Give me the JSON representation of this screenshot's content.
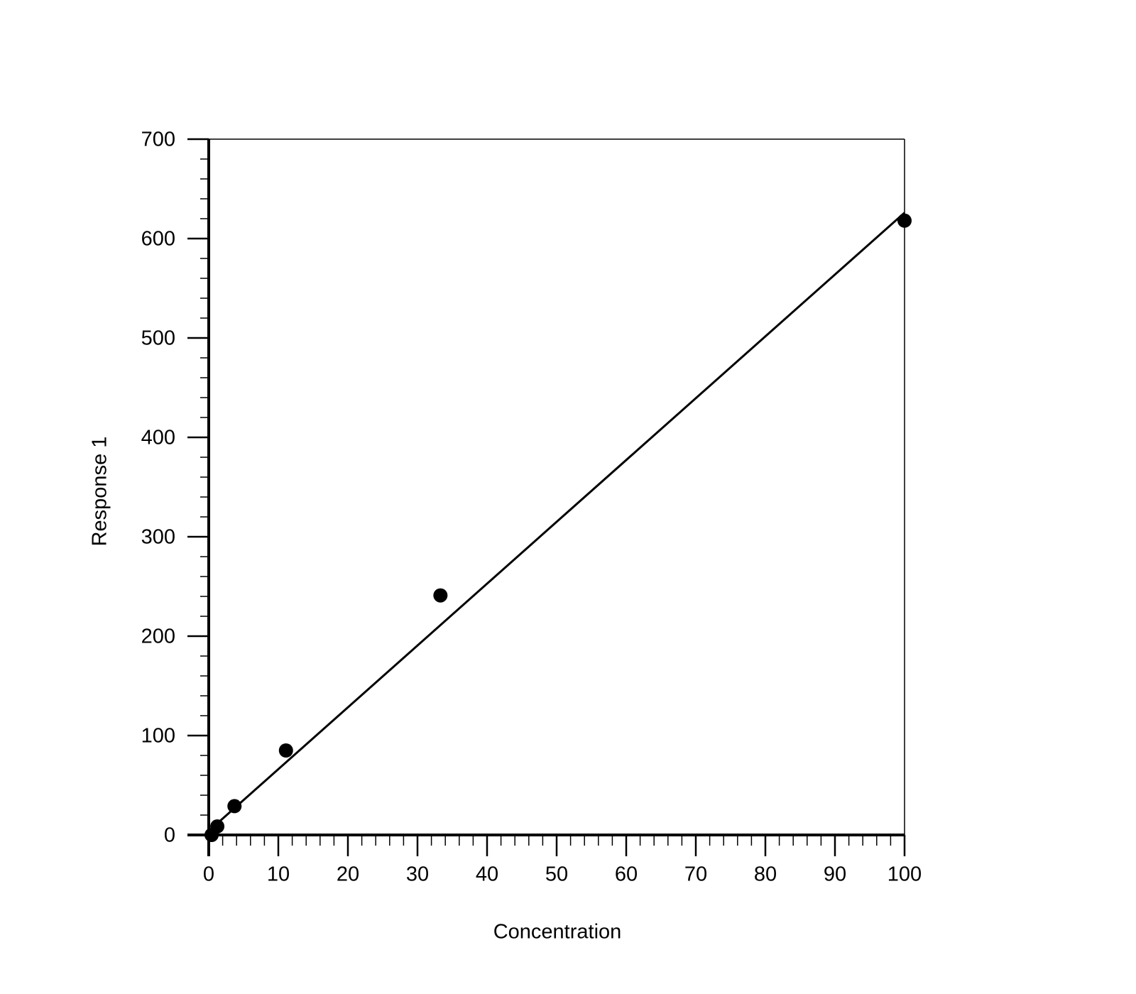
{
  "chart_data": {
    "type": "scatter",
    "xlabel": "Concentration",
    "ylabel": "Response 1",
    "series": [
      {
        "mode": "markers",
        "color": "#000000",
        "x": [
          0.41,
          1.23,
          3.7,
          11.1,
          33.3,
          100
        ],
        "values": [
          0,
          8.6,
          29,
          85,
          241,
          618
        ]
      },
      {
        "mode": "line",
        "color": "#000000",
        "x": [
          0,
          100
        ],
        "values": [
          4,
          626
        ]
      }
    ],
    "xlim": [
      0,
      100
    ],
    "ylim": [
      0,
      700
    ],
    "xticks": [
      0,
      10,
      20,
      30,
      40,
      50,
      60,
      70,
      80,
      90,
      100
    ],
    "yticks": [
      0,
      100,
      200,
      300,
      400,
      500,
      600,
      700
    ],
    "xminor": 2,
    "yminor": 20,
    "grid": false
  }
}
